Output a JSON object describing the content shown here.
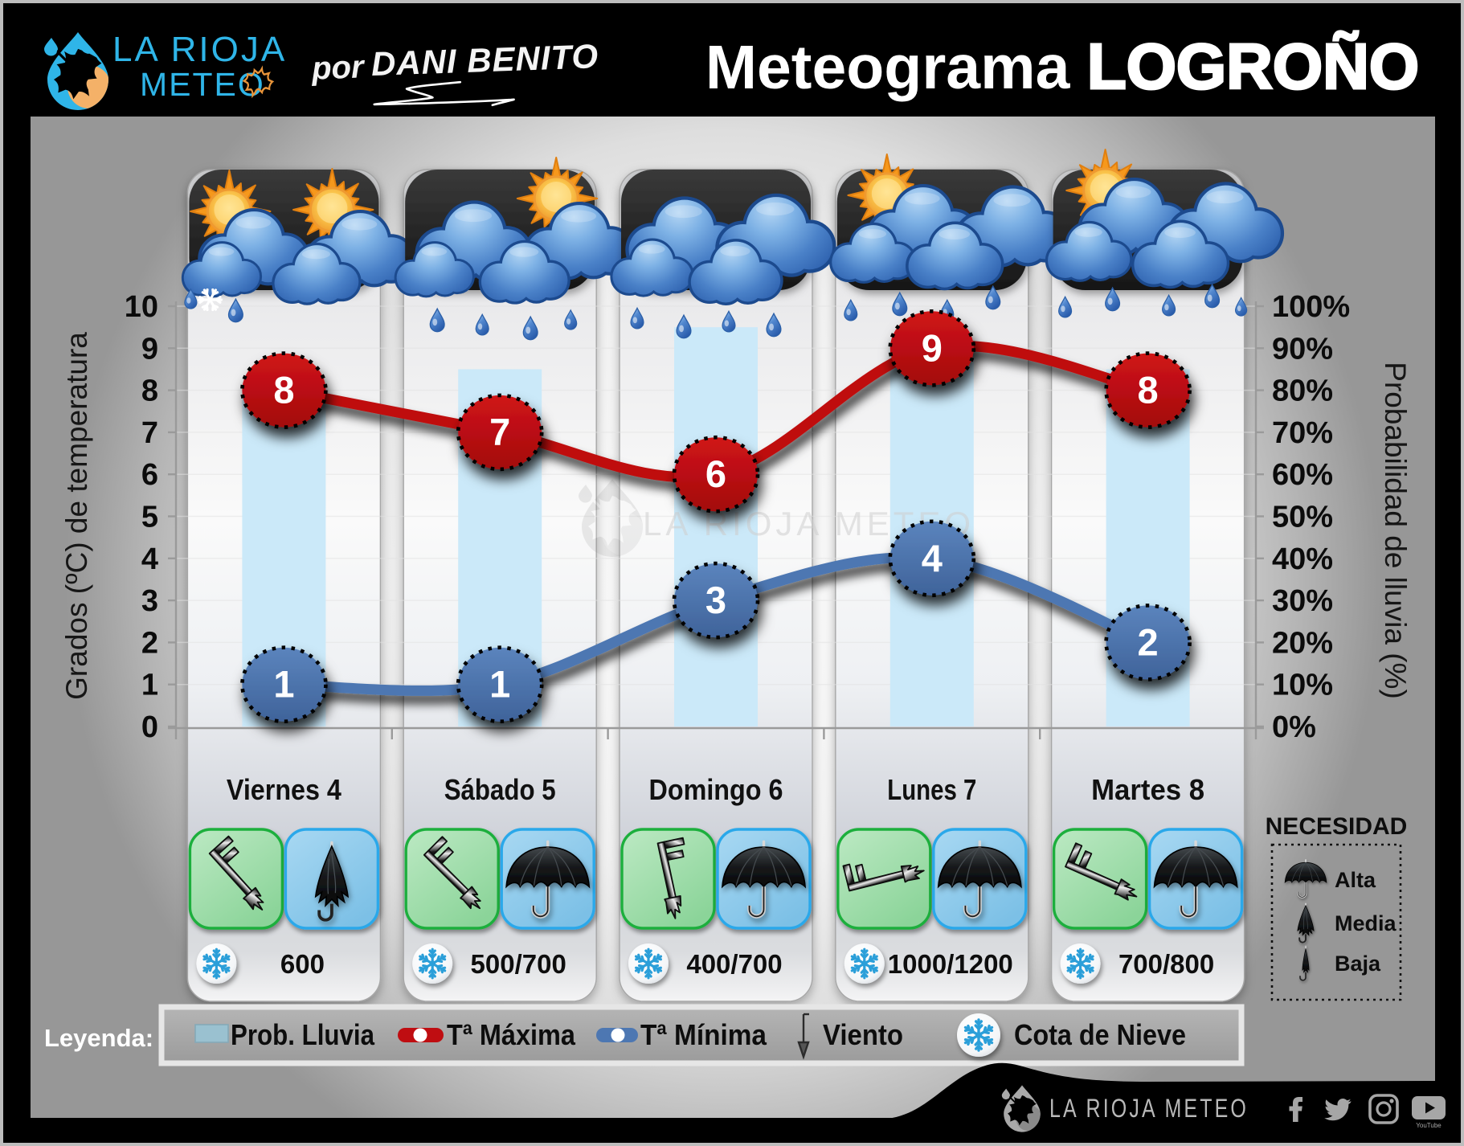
{
  "header": {
    "brand_line1": "LA RIOJA",
    "brand_line2": "METEO",
    "byline_prefix": "por",
    "byline_name": "DANI BENITO",
    "title_regular": "Meteograma",
    "title_bold": "LOGROÑO"
  },
  "watermark": "LA RIOJA METEO",
  "chart_data": {
    "type": "combo",
    "categories": [
      "Viernes 4",
      "Sábado 5",
      "Domingo 6",
      "Lunes 7",
      "Martes 8"
    ],
    "series": [
      {
        "name": "Prob. Lluvia",
        "type": "bar",
        "axis": "right",
        "unit": "%",
        "values": [
          80,
          85,
          95,
          90,
          85
        ],
        "color": "#cbe9f9"
      },
      {
        "name": "Tª Máxima",
        "type": "line",
        "axis": "left",
        "unit": "ºC",
        "values": [
          8,
          7,
          6,
          9,
          8
        ],
        "color": "#bf0d11"
      },
      {
        "name": "Tª Mínima",
        "type": "line",
        "axis": "left",
        "unit": "ºC",
        "values": [
          1,
          1,
          3,
          4,
          2
        ],
        "color": "#4d77b2"
      }
    ],
    "left_axis": {
      "title": "Grados (ºC) de temperatura",
      "min": 0,
      "max": 10,
      "step": 1,
      "tick_labels": [
        "0",
        "1",
        "2",
        "3",
        "4",
        "5",
        "6",
        "7",
        "8",
        "9",
        "10"
      ]
    },
    "right_axis": {
      "title": "Probabilidad de lluvia (%)",
      "min": 0,
      "max": 100,
      "step": 10,
      "tick_labels": [
        "0%",
        "10%",
        "20%",
        "30%",
        "40%",
        "50%",
        "60%",
        "70%",
        "80%",
        "90%",
        "100%"
      ]
    },
    "grid": true,
    "legend_position": "bottom"
  },
  "days": [
    {
      "label": "Viernes 4",
      "snow_level": "600",
      "wind_dir_deg": 48,
      "umbrella": "media",
      "weather": "sol-nubes-lluvia-nieve"
    },
    {
      "label": "Sábado 5",
      "snow_level": "500/700",
      "wind_dir_deg": 45,
      "umbrella": "alta",
      "weather": "nubes-sol-lluvia"
    },
    {
      "label": "Domingo 6",
      "snow_level": "400/700",
      "wind_dir_deg": 78,
      "umbrella": "alta",
      "weather": "nubes-lluvia"
    },
    {
      "label": "Lunes 7",
      "snow_level": "1000/1200",
      "wind_dir_deg": -14,
      "umbrella": "alta",
      "weather": "sol-nubes-lluvia"
    },
    {
      "label": "Martes 8",
      "snow_level": "700/800",
      "wind_dir_deg": 24,
      "umbrella": "alta",
      "weather": "sol-nubes-lluvia"
    }
  ],
  "necesidad": {
    "title": "NECESIDAD",
    "items": [
      {
        "label": "Alta",
        "umbrella": "alta"
      },
      {
        "label": "Media",
        "umbrella": "media"
      },
      {
        "label": "Baja",
        "umbrella": "baja"
      }
    ]
  },
  "legend": {
    "label": "Leyenda:",
    "items": [
      {
        "icon": "rain-bar-swatch",
        "label": "Prob. Lluvia"
      },
      {
        "icon": "red-line-marker",
        "label": "Tª Máxima"
      },
      {
        "icon": "blue-line-marker",
        "label": "Tª Mínima"
      },
      {
        "icon": "wind-arrow",
        "label": "Viento"
      },
      {
        "icon": "snowflake",
        "label": "Cota de Nieve"
      }
    ]
  },
  "footer": {
    "brand": "LA RIOJA METEO",
    "social": [
      "facebook",
      "twitter",
      "instagram",
      "youtube"
    ],
    "youtube_label": "YouTube"
  },
  "colors": {
    "bar": "#cbe9f9",
    "tmax": "#bf0d11",
    "tmin": "#4d77b2",
    "legend_swatch": "#9ac1d0",
    "brand_cyan": "#2fb5e8",
    "brand_orange": "#f4b168",
    "green_box": "#98dba4",
    "green_border": "#1faf3c",
    "blue_box": "#8ac8ec",
    "blue_border": "#29a8ea"
  }
}
